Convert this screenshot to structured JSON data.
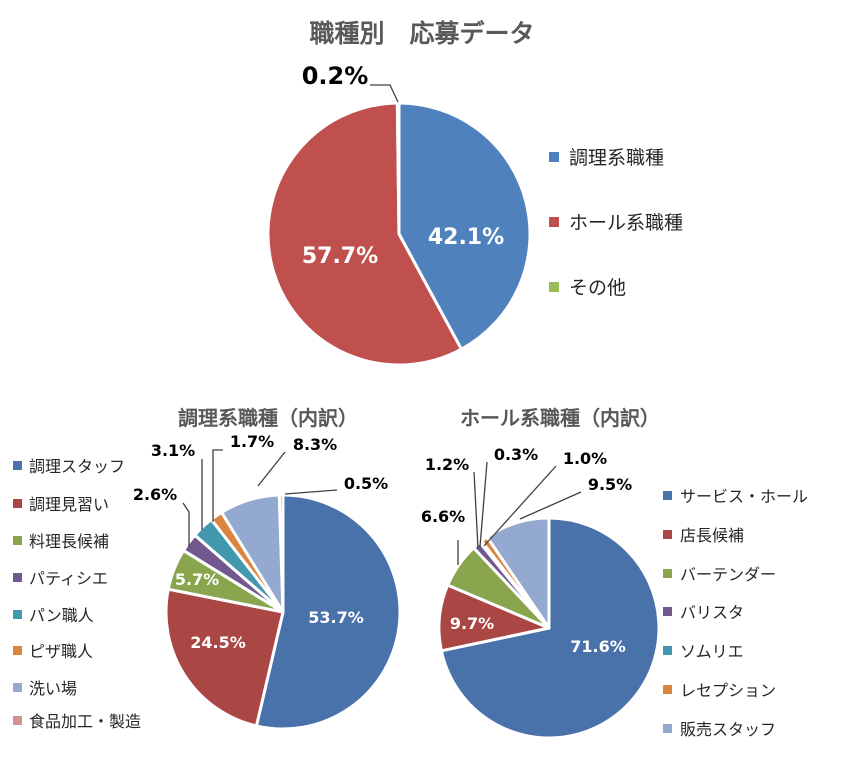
{
  "chart_data": [
    {
      "type": "pie",
      "title": "職種別　応募データ",
      "legend_position": "right",
      "slices": [
        {
          "label": "調理系職種",
          "value": 42.1,
          "display": "42.1%",
          "color": "#4f81bd"
        },
        {
          "label": "ホール系職種",
          "value": 57.7,
          "display": "57.7%",
          "color": "#c0504d"
        },
        {
          "label": "その他",
          "value": 0.2,
          "display": "0.2%",
          "color": "#9bbb59"
        }
      ]
    },
    {
      "type": "pie",
      "title": "調理系職種（内訳）",
      "legend_position": "left",
      "slices": [
        {
          "label": "調理スタッフ",
          "value": 53.7,
          "display": "53.7%",
          "color": "#4a72aa"
        },
        {
          "label": "調理見習い",
          "value": 24.5,
          "display": "24.5%",
          "color": "#aa4644"
        },
        {
          "label": "料理長候補",
          "value": 5.7,
          "display": "5.7%",
          "color": "#89a54e"
        },
        {
          "label": "パティシエ",
          "value": 2.6,
          "display": "2.6%",
          "color": "#71588f"
        },
        {
          "label": "パン職人",
          "value": 3.1,
          "display": "3.1%",
          "color": "#4198af"
        },
        {
          "label": "ピザ職人",
          "value": 1.7,
          "display": "1.7%",
          "color": "#db843d"
        },
        {
          "label": "洗い場",
          "value": 8.3,
          "display": "8.3%",
          "color": "#93a9cf"
        },
        {
          "label": "食品加工・製造",
          "value": 0.5,
          "display": "0.5%",
          "color": "#d19392"
        }
      ]
    },
    {
      "type": "pie",
      "title": "ホール系職種（内訳）",
      "legend_position": "right",
      "slices": [
        {
          "label": "サービス・ホール",
          "value": 71.6,
          "display": "71.6%",
          "color": "#4a72aa"
        },
        {
          "label": "店長候補",
          "value": 9.7,
          "display": "9.7%",
          "color": "#aa4644"
        },
        {
          "label": "バーテンダー",
          "value": 6.6,
          "display": "6.6%",
          "color": "#89a54e"
        },
        {
          "label": "バリスタ",
          "value": 1.2,
          "display": "1.2%",
          "color": "#71588f"
        },
        {
          "label": "ソムリエ",
          "value": 0.3,
          "display": "0.3%",
          "color": "#4198af"
        },
        {
          "label": "レセプション",
          "value": 1.0,
          "display": "1.0%",
          "color": "#db843d"
        },
        {
          "label": "販売スタッフ",
          "value": 9.5,
          "display": "9.5%",
          "color": "#93a9cf"
        }
      ]
    }
  ]
}
